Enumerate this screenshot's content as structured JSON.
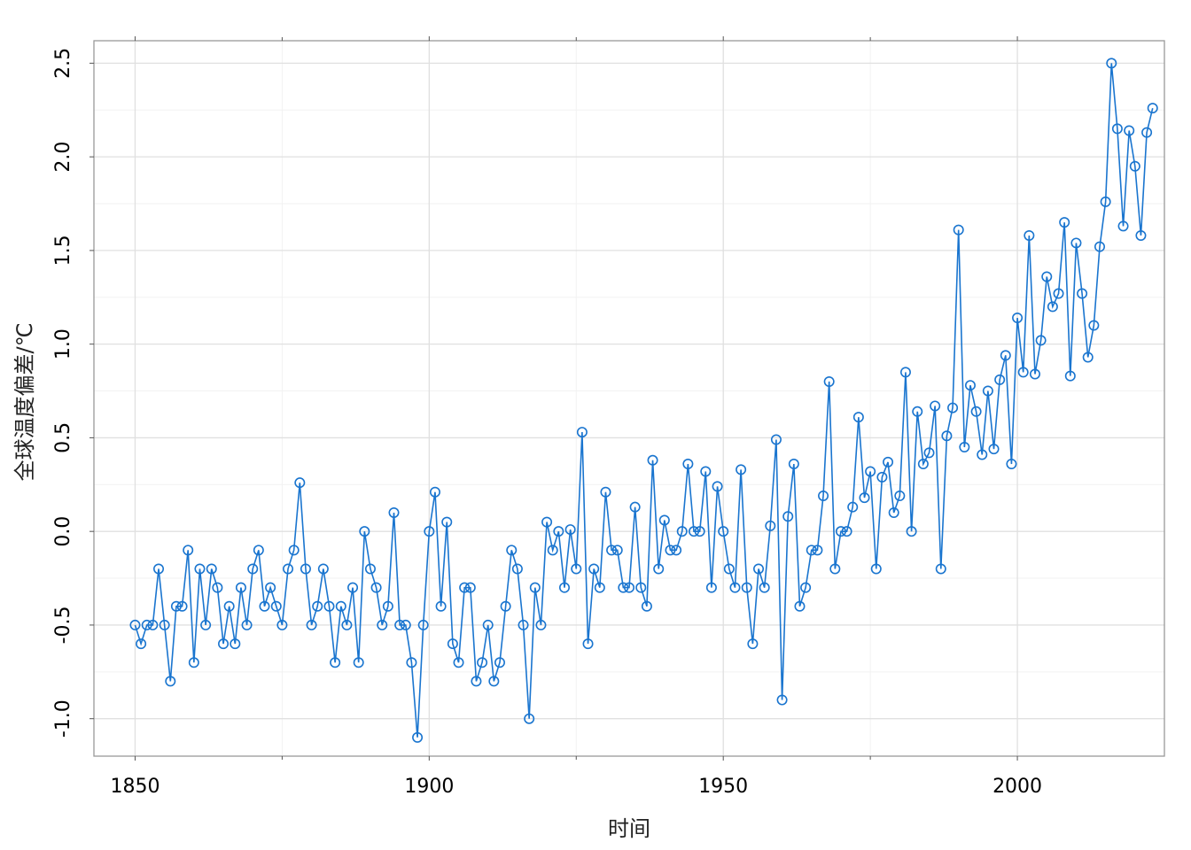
{
  "chart_data": {
    "type": "line",
    "title": "",
    "xlabel": "时间",
    "ylabel": "全球温度偏差/℃",
    "xlim": [
      1843,
      2025
    ],
    "ylim": [
      -1.2,
      2.62
    ],
    "x_ticks": [
      1850,
      1900,
      1950,
      2000
    ],
    "x_ticks_labels": [
      "1850",
      "1900",
      "1950",
      "2000"
    ],
    "y_ticks": [
      -1.0,
      -0.5,
      0.0,
      0.5,
      1.0,
      1.5,
      2.0,
      2.5
    ],
    "y_ticks_labels": [
      "-1.0",
      "-0.5",
      "0.0",
      "0.5",
      "1.0",
      "1.5",
      "2.0",
      "2.5"
    ],
    "grid": true,
    "legend": "none",
    "series": [
      {
        "color": "#1a75cf",
        "marker": "open-circle",
        "x": [
          1850,
          1851,
          1852,
          1853,
          1854,
          1855,
          1856,
          1857,
          1858,
          1859,
          1860,
          1861,
          1862,
          1863,
          1864,
          1865,
          1866,
          1867,
          1868,
          1869,
          1870,
          1871,
          1872,
          1873,
          1874,
          1875,
          1876,
          1877,
          1878,
          1879,
          1880,
          1881,
          1882,
          1883,
          1884,
          1885,
          1886,
          1887,
          1888,
          1889,
          1890,
          1891,
          1892,
          1893,
          1894,
          1895,
          1896,
          1897,
          1898,
          1899,
          1900,
          1901,
          1902,
          1903,
          1904,
          1905,
          1906,
          1907,
          1908,
          1909,
          1910,
          1911,
          1912,
          1913,
          1914,
          1915,
          1916,
          1917,
          1918,
          1919,
          1920,
          1921,
          1922,
          1923,
          1924,
          1925,
          1926,
          1927,
          1928,
          1929,
          1930,
          1931,
          1932,
          1933,
          1934,
          1935,
          1936,
          1937,
          1938,
          1939,
          1940,
          1941,
          1942,
          1943,
          1944,
          1945,
          1946,
          1947,
          1948,
          1949,
          1950,
          1951,
          1952,
          1953,
          1954,
          1955,
          1956,
          1957,
          1958,
          1959,
          1960,
          1961,
          1962,
          1963,
          1964,
          1965,
          1966,
          1967,
          1968,
          1969,
          1970,
          1971,
          1972,
          1973,
          1974,
          1975,
          1976,
          1977,
          1978,
          1979,
          1980,
          1981,
          1982,
          1983,
          1984,
          1985,
          1986,
          1987,
          1988,
          1989,
          1990,
          1991,
          1992,
          1993,
          1994,
          1995,
          1996,
          1997,
          1998,
          1999,
          2000,
          2001,
          2002,
          2003,
          2004,
          2005,
          2006,
          2007,
          2008,
          2009,
          2010,
          2011,
          2012,
          2013,
          2014,
          2015,
          2016,
          2017,
          2018,
          2019,
          2020,
          2021,
          2022,
          2023
        ],
        "y": [
          -0.5,
          -0.6,
          -0.5,
          -0.5,
          -0.2,
          -0.5,
          -0.8,
          -0.4,
          -0.4,
          -0.1,
          -0.7,
          -0.2,
          -0.5,
          -0.2,
          -0.3,
          -0.6,
          -0.4,
          -0.6,
          -0.3,
          -0.5,
          -0.2,
          -0.1,
          -0.4,
          -0.3,
          -0.4,
          -0.5,
          -0.2,
          -0.1,
          0.26,
          -0.2,
          -0.5,
          -0.4,
          -0.2,
          -0.4,
          -0.7,
          -0.4,
          -0.5,
          -0.3,
          -0.7,
          0.0,
          -0.2,
          -0.3,
          -0.5,
          -0.4,
          0.1,
          -0.5,
          -0.5,
          -0.7,
          -1.1,
          -0.5,
          0.0,
          0.21,
          -0.4,
          0.05,
          -0.6,
          -0.7,
          -0.3,
          -0.3,
          -0.8,
          -0.7,
          -0.5,
          -0.8,
          -0.7,
          -0.4,
          -0.1,
          -0.2,
          -0.5,
          -1.0,
          -0.3,
          -0.5,
          0.05,
          -0.1,
          0.0,
          -0.3,
          0.01,
          -0.2,
          0.53,
          -0.6,
          -0.2,
          -0.3,
          0.21,
          -0.1,
          -0.1,
          -0.3,
          -0.3,
          0.13,
          -0.3,
          -0.4,
          0.38,
          -0.2,
          0.06,
          -0.1,
          -0.1,
          0.0,
          0.36,
          0.0,
          0.0,
          0.32,
          -0.3,
          0.24,
          0.0,
          -0.2,
          -0.3,
          0.33,
          -0.3,
          -0.6,
          -0.2,
          -0.3,
          0.03,
          0.49,
          -0.9,
          0.08,
          0.36,
          -0.4,
          -0.3,
          -0.1,
          -0.1,
          0.19,
          0.8,
          -0.2,
          0.0,
          0.0,
          0.13,
          0.61,
          0.18,
          0.32,
          -0.2,
          0.29,
          0.37,
          0.1,
          0.19,
          0.85,
          0.0,
          0.64,
          0.36,
          0.42,
          0.67,
          -0.2,
          0.51,
          0.66,
          1.61,
          0.45,
          0.78,
          0.64,
          0.41,
          0.75,
          0.44,
          0.81,
          0.94,
          0.36,
          1.14,
          0.85,
          1.58,
          0.84,
          1.02,
          1.36,
          1.2,
          1.27,
          1.65,
          0.83,
          1.54,
          1.27,
          0.93,
          1.1,
          1.52,
          1.76,
          2.5,
          2.15,
          1.63,
          2.14,
          1.95,
          1.58,
          2.13,
          2.26
        ]
      }
    ]
  }
}
